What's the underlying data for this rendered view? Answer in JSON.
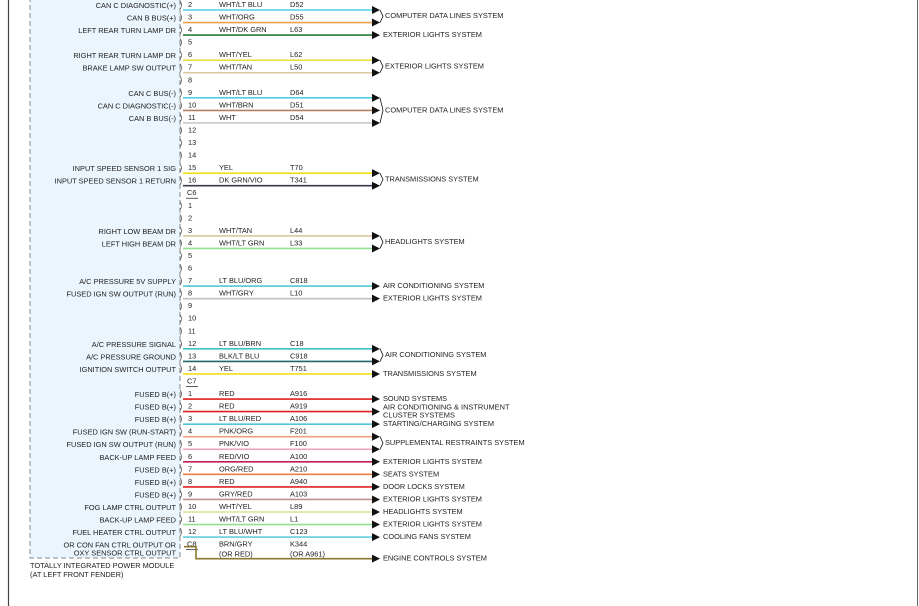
{
  "sections": [
    {
      "blocks": [
        {
          "destination": "COMPUTER DATA LINES SYSTEM",
          "rows": [
            {
              "pin": "2",
              "label": "CAN C DIAGNOSTIC(+)",
              "wire": "WHT/LT BLU",
              "circuit": "D52",
              "color": "#4fd0e0"
            },
            {
              "pin": "3",
              "label": "CAN B BUS(+)",
              "wire": "WHT/ORG",
              "circuit": "D55",
              "color": "#f0a050"
            }
          ]
        },
        {
          "destination": "EXTERIOR LIGHTS SYSTEM",
          "rows": [
            {
              "pin": "4",
              "label": "LEFT REAR TURN LAMP DR",
              "wire": "WHT/DK GRN",
              "circuit": "L63",
              "color": "#2a7a3a"
            }
          ]
        },
        {
          "rows": [
            {
              "pin": "5"
            }
          ]
        },
        {
          "destination": "EXTERIOR LIGHTS SYSTEM",
          "rows": [
            {
              "pin": "6",
              "label": "RIGHT REAR TURN LAMP DR",
              "wire": "WHT/YEL",
              "circuit": "L62",
              "color": "#e8e040"
            },
            {
              "pin": "7",
              "label": "BRAKE LAMP SW OUTPUT",
              "wire": "WHT/TAN",
              "circuit": "L50",
              "color": "#d8c8a0"
            }
          ]
        },
        {
          "rows": [
            {
              "pin": "8"
            }
          ]
        },
        {
          "destination": "COMPUTER DATA LINES SYSTEM",
          "rows": [
            {
              "pin": "9",
              "label": "CAN C BUS(-)",
              "wire": "WHT/LT BLU",
              "circuit": "D64",
              "color": "#4fd0e0"
            },
            {
              "pin": "10",
              "label": "CAN C DIAGNOSTIC(-)",
              "wire": "WHT/BRN",
              "circuit": "D51",
              "color": "#b08060"
            },
            {
              "pin": "11",
              "label": "CAN B BUS(-)",
              "wire": "WHT",
              "circuit": "D54",
              "color": "#c8c8c8"
            }
          ]
        },
        {
          "rows": [
            {
              "pin": "12"
            },
            {
              "pin": "13"
            },
            {
              "pin": "14"
            }
          ]
        },
        {
          "destination": "TRANSMISSIONS SYSTEM",
          "rows": [
            {
              "pin": "15",
              "label": "INPUT SPEED SENSOR 1 SIG",
              "wire": "YEL",
              "circuit": "T70",
              "color": "#f0e010"
            },
            {
              "pin": "16",
              "label": "INPUT SPEED SENSOR 1 RETURN",
              "wire": "DK GRN/VIO",
              "circuit": "T341",
              "color": "#3a3a50"
            }
          ]
        }
      ]
    },
    {
      "connector": "C6",
      "blocks": [
        {
          "rows": [
            {
              "pin": "1"
            },
            {
              "pin": "2"
            }
          ]
        },
        {
          "destination": "HEADLIGHTS SYSTEM",
          "rows": [
            {
              "pin": "3",
              "label": "RIGHT LOW BEAM DR",
              "wire": "WHT/TAN",
              "circuit": "L44",
              "color": "#d8c8a0"
            },
            {
              "pin": "4",
              "label": "LEFT HIGH BEAM DR",
              "wire": "WHT/LT GRN",
              "circuit": "L33",
              "color": "#90e090"
            }
          ]
        },
        {
          "rows": [
            {
              "pin": "5"
            },
            {
              "pin": "6"
            }
          ]
        },
        {
          "destination": "AIR CONDITIONING SYSTEM",
          "rows": [
            {
              "pin": "7",
              "label": "A/C PRESSURE 5V SUPPLY",
              "wire": "LT BLU/ORG",
              "circuit": "C818",
              "color": "#50c8d0"
            }
          ]
        },
        {
          "destination": "EXTERIOR LIGHTS SYSTEM",
          "rows": [
            {
              "pin": "8",
              "label": "FUSED IGN SW OUTPUT (RUN)",
              "wire": "WHT/GRY",
              "circuit": "L10",
              "color": "#c0c0c0"
            }
          ]
        },
        {
          "rows": [
            {
              "pin": "9"
            },
            {
              "pin": "10"
            },
            {
              "pin": "11"
            }
          ]
        },
        {
          "destination": "AIR CONDITIONING SYSTEM",
          "rows": [
            {
              "pin": "12",
              "label": "A/C PRESSURE SIGNAL",
              "wire": "LT BLU/BRN",
              "circuit": "C18",
              "color": "#40c0c8"
            },
            {
              "pin": "13",
              "label": "A/C PRESSURE GROUND",
              "wire": "BLK/LT BLU",
              "circuit": "C918",
              "color": "#206868"
            }
          ]
        },
        {
          "destination": "TRANSMISSIONS SYSTEM",
          "rows": [
            {
              "pin": "14",
              "label": "IGNITION SWITCH OUTPUT",
              "wire": "YEL",
              "circuit": "T751",
              "color": "#f0e010"
            }
          ]
        }
      ]
    },
    {
      "connector": "C7",
      "blocks": [
        {
          "destination": "SOUND SYSTEMS",
          "rows": [
            {
              "pin": "1",
              "label": "FUSED B(+)",
              "wire": "RED",
              "circuit": "A916",
              "color": "#e02020"
            }
          ]
        },
        {
          "destination": [
            "AIR CONDITIONING & INSTRUMENT",
            "CLUSTER SYSTEMS"
          ],
          "rows": [
            {
              "pin": "2",
              "label": "FUSED B(+)",
              "wire": "RED",
              "circuit": "A919",
              "color": "#e02020"
            }
          ]
        },
        {
          "destination": "STARTING/CHARGING SYSTEM",
          "rows": [
            {
              "pin": "3",
              "label": "FUSED B(+)",
              "wire": "LT BLU/RED",
              "circuit": "A106",
              "color": "#50c8d8"
            }
          ]
        },
        {
          "destination": "SUPPLEMENTAL RESTRAINTS SYSTEM",
          "rows": [
            {
              "pin": "4",
              "label": "FUSED IGN SW (RUN-START)",
              "wire": "PNK/ORG",
              "circuit": "F201",
              "color": "#f0a080"
            },
            {
              "pin": "5",
              "label": "FUSED IGN SW OUTPUT (RUN)",
              "wire": "PNK/VIO",
              "circuit": "F100",
              "color": "#f0a0c0"
            }
          ]
        },
        {
          "destination": "EXTERIOR LIGHTS SYSTEM",
          "rows": [
            {
              "pin": "6",
              "label": "BACK-UP LAMP FEED",
              "wire": "RED/VIO",
              "circuit": "A100",
              "color": "#c02050"
            }
          ]
        },
        {
          "destination": "SEATS SYSTEM",
          "rows": [
            {
              "pin": "7",
              "label": "FUSED B(+)",
              "wire": "ORG/RED",
              "circuit": "A210",
              "color": "#f08040"
            }
          ]
        },
        {
          "destination": "DOOR LOCKS SYSTEM",
          "rows": [
            {
              "pin": "8",
              "label": "FUSED B(+)",
              "wire": "RED",
              "circuit": "A940",
              "color": "#e02020"
            }
          ]
        },
        {
          "destination": "EXTERIOR LIGHTS SYSTEM",
          "rows": [
            {
              "pin": "9",
              "label": "FUSED B(+)",
              "wire": "GRY/RED",
              "circuit": "A103",
              "color": "#c09090"
            }
          ]
        },
        {
          "destination": "HEADLIGHTS SYSTEM",
          "rows": [
            {
              "pin": "10",
              "label": "FOG LAMP CTRL OUTPUT",
              "wire": "WHT/YEL",
              "circuit": "L89",
              "color": "#e0e090"
            }
          ]
        },
        {
          "destination": "EXTERIOR LIGHTS SYSTEM",
          "rows": [
            {
              "pin": "11",
              "label": "BACK-UP LAMP FEED",
              "wire": "WHT/LT GRN",
              "circuit": "L1",
              "color": "#90e090"
            }
          ]
        },
        {
          "destination": "COOLING FANS SYSTEM",
          "rows": [
            {
              "pin": "12",
              "label": "FUEL HEATER CTRL OUTPUT",
              "wire": "LT BLU/WHT",
              "circuit": "C123",
              "color": "#60d0e0"
            }
          ]
        }
      ]
    },
    {
      "connector": "C8",
      "blocks": [
        {
          "destination": "ENGINE CONTROLS SYSTEM",
          "rows": [
            {
              "label": [
                "OR CON FAN CTRL OUTPUT OR",
                "OXY SENSOR CTRL OUTPUT"
              ],
              "wire": [
                "BRN/GRY",
                "(OR RED)"
              ],
              "circuit": [
                "K344",
                "(OR A961)"
              ],
              "color": "#8a7a30"
            }
          ]
        }
      ]
    }
  ],
  "footer": [
    "TOTALLY INTEGRATED POWER MODULE",
    "(AT LEFT FRONT FENDER)"
  ]
}
